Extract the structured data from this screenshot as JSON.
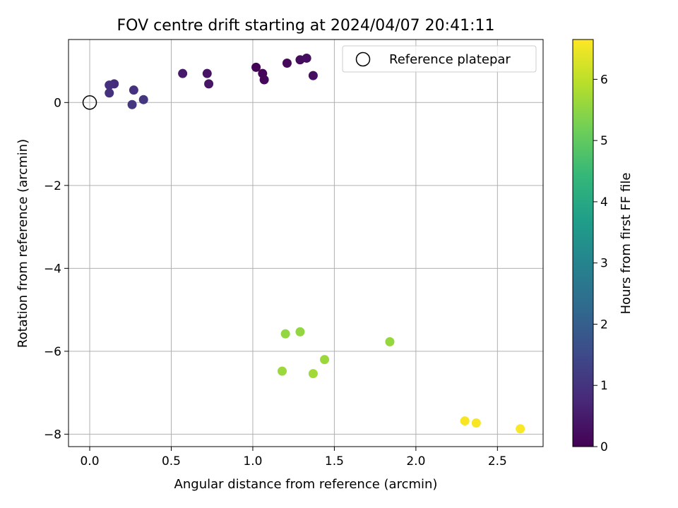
{
  "chart_data": {
    "type": "scatter",
    "title": "FOV centre drift starting at 2024/04/07 20:41:11",
    "xlabel": "Angular distance from reference (arcmin)",
    "ylabel": "Rotation from reference (arcmin)",
    "xlim": [
      -0.13,
      2.78
    ],
    "ylim": [
      -8.3,
      1.52
    ],
    "xticks": [
      0.0,
      0.5,
      1.0,
      1.5,
      2.0,
      2.5
    ],
    "xtick_labels": [
      "0.0",
      "0.5",
      "1.0",
      "1.5",
      "2.0",
      "2.5"
    ],
    "yticks": [
      0,
      -2,
      -4,
      -6,
      -8
    ],
    "ytick_labels": [
      "0",
      "−2",
      "−4",
      "−6",
      "−8"
    ],
    "grid": true,
    "legend": {
      "position": "top-right",
      "entries": [
        "Reference platepar"
      ]
    },
    "reference_point": {
      "x": 0.0,
      "y": 0.0
    },
    "colorbar": {
      "label": "Hours from first FF file",
      "range": [
        0,
        6.65
      ],
      "ticks": [
        0,
        1,
        2,
        3,
        4,
        5,
        6
      ],
      "tick_labels": [
        "0",
        "1",
        "2",
        "3",
        "4",
        "5",
        "6"
      ],
      "colormap": [
        "#440154",
        "#482878",
        "#3e4989",
        "#31688e",
        "#26828e",
        "#1f9e89",
        "#35b779",
        "#6ece58",
        "#b5de2b",
        "#fde725"
      ]
    },
    "points": [
      {
        "x": 1.02,
        "y": 0.85,
        "c": 0.05
      },
      {
        "x": 1.06,
        "y": 0.7,
        "c": 0.1
      },
      {
        "x": 1.07,
        "y": 0.55,
        "c": 0.12
      },
      {
        "x": 1.21,
        "y": 0.95,
        "c": 0.15
      },
      {
        "x": 1.29,
        "y": 1.03,
        "c": 0.2
      },
      {
        "x": 1.33,
        "y": 1.07,
        "c": 0.22
      },
      {
        "x": 1.37,
        "y": 0.65,
        "c": 0.25
      },
      {
        "x": 0.72,
        "y": 0.7,
        "c": 0.35
      },
      {
        "x": 0.73,
        "y": 0.45,
        "c": 0.4
      },
      {
        "x": 0.57,
        "y": 0.7,
        "c": 0.45
      },
      {
        "x": 0.15,
        "y": 0.45,
        "c": 0.85
      },
      {
        "x": 0.12,
        "y": 0.42,
        "c": 0.9
      },
      {
        "x": 0.12,
        "y": 0.23,
        "c": 0.95
      },
      {
        "x": 0.27,
        "y": 0.3,
        "c": 0.95
      },
      {
        "x": 0.26,
        "y": -0.05,
        "c": 1.05
      },
      {
        "x": 0.33,
        "y": 0.07,
        "c": 1.05
      },
      {
        "x": 1.2,
        "y": -5.58,
        "c": 5.55
      },
      {
        "x": 1.29,
        "y": -5.53,
        "c": 5.55
      },
      {
        "x": 1.18,
        "y": -6.48,
        "c": 5.65
      },
      {
        "x": 1.37,
        "y": -6.54,
        "c": 5.7
      },
      {
        "x": 1.44,
        "y": -6.2,
        "c": 5.65
      },
      {
        "x": 1.84,
        "y": -5.77,
        "c": 5.6
      },
      {
        "x": 2.3,
        "y": -7.68,
        "c": 6.6
      },
      {
        "x": 2.37,
        "y": -7.73,
        "c": 6.6
      },
      {
        "x": 2.64,
        "y": -7.87,
        "c": 6.62
      }
    ]
  }
}
